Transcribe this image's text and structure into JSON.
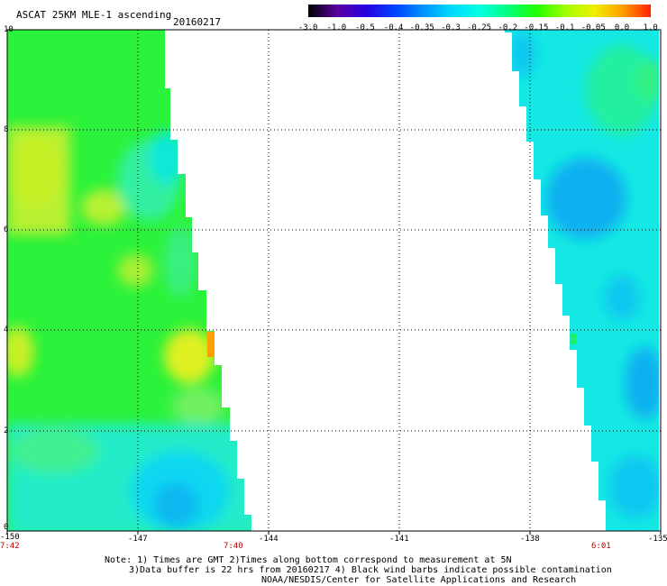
{
  "header": {
    "title": "ASCAT 25KM MLE-1 ascending",
    "date": "20160217"
  },
  "colorbar": {
    "labels": [
      "-3.0",
      "-1.0",
      "-0.5",
      "-0.4",
      "-0.35",
      "-0.3",
      "-0.25",
      "-0.2",
      "-0.15",
      "-0.1",
      "-0.05",
      "0.0",
      "1.0"
    ],
    "colors": [
      "#000000",
      "#5a00a0",
      "#2a00e0",
      "#0040ff",
      "#0090ff",
      "#00d8ff",
      "#00ffe0",
      "#00ff80",
      "#20ff00",
      "#a0ff00",
      "#f0f000",
      "#ffa000",
      "#ff2000"
    ]
  },
  "axes": {
    "y_ticks": [
      "10",
      "8",
      "6",
      "4",
      "2",
      "0"
    ],
    "x_ticks": [
      "-150",
      "-147",
      "-144",
      "-141",
      "-138",
      "-135"
    ],
    "times": [
      "7:42",
      "7:40",
      "6:01"
    ]
  },
  "notes": {
    "line1": "Note: 1) Times are GMT 2)Times along bottom correspond to measurement at 5N",
    "line2": "3)Data buffer is 22 hrs from 20160217 4) Black wind barbs indicate possible contamination",
    "line3": "NOAA/NESDIS/Center for Satellite Applications and Research"
  }
}
